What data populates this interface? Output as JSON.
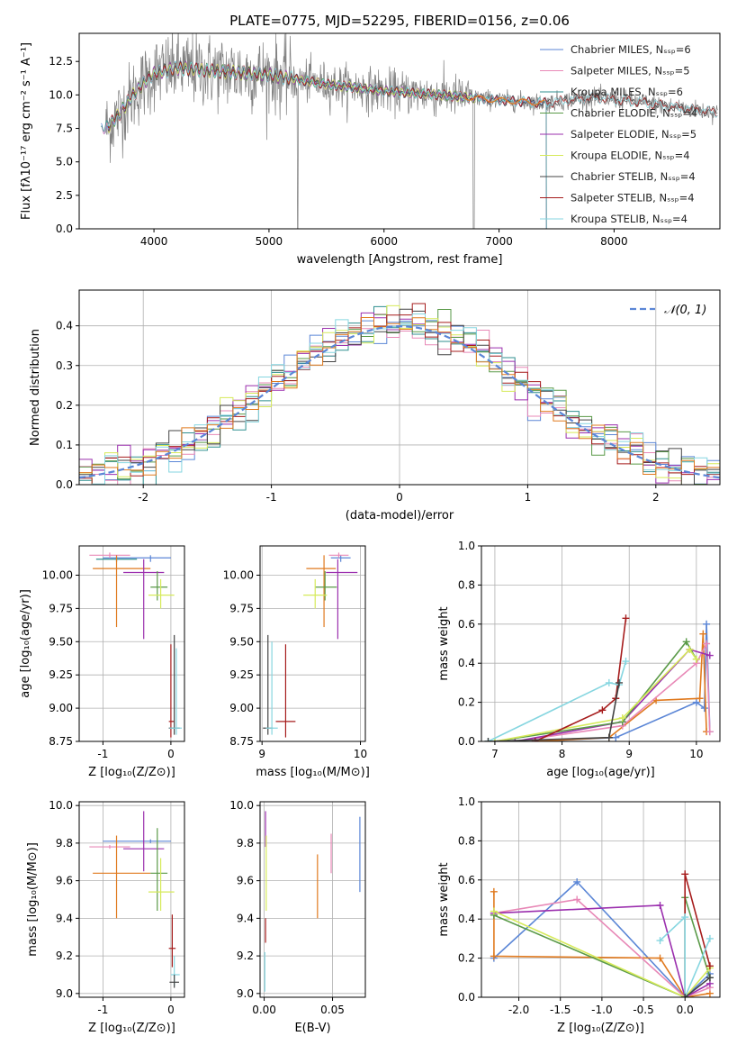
{
  "figure": {
    "title": "PLATE=0775, MJD=52295, FIBERID=0156, z=0.06"
  },
  "colors": {
    "data": "#808080",
    "Chabrier MILES": "#5b86d6",
    "Salpeter MILES": "#e889b7",
    "Kroupa MILES": "#2f8f8f",
    "Chabrier ELODIE": "#5a9a48",
    "Salpeter ELODIE": "#9b2fae",
    "Kroupa ELODIE": "#d6ea5a",
    "Chabrier STELIB": "#444444",
    "Salpeter STELIB": "#a61c1c",
    "Kroupa STELIB": "#86d6e0",
    "orange": "#e07a1f",
    "normal": "#5b86d6"
  },
  "chart_data": [
    {
      "id": "spectrum",
      "type": "line",
      "xlabel": "wavelength [Angstrom, rest frame]",
      "ylabel": "Flux [fλ10⁻¹⁷ erg cm⁻² s⁻¹ A⁻¹]",
      "xlim": [
        3350,
        8920
      ],
      "ylim": [
        0,
        14.6
      ],
      "xticks": [
        4000,
        5000,
        6000,
        7000,
        8000
      ],
      "yticks": [
        0.0,
        2.5,
        5.0,
        7.5,
        10.0,
        12.5
      ],
      "legend_position": "top-right",
      "legend": [
        "Chabrier MILES, Nₛₛₚ=6",
        "Salpeter MILES, Nₛₛₚ=5",
        "Kroupa MILES, Nₛₛₚ=6",
        "Chabrier ELODIE, Nₛₛₚ=4",
        "Salpeter ELODIE, Nₛₛₚ=5",
        "Kroupa ELODIE, Nₛₛₚ=4",
        "Chabrier STELIB, Nₛₛₚ=4",
        "Salpeter STELIB, Nₛₛₚ=4",
        "Kroupa STELIB, Nₛₛₚ=4"
      ],
      "continuum": [
        [
          3600,
          7.6
        ],
        [
          3700,
          8.6
        ],
        [
          3800,
          9.8
        ],
        [
          3900,
          10.8
        ],
        [
          4000,
          11.6
        ],
        [
          4200,
          12.0
        ],
        [
          4500,
          11.8
        ],
        [
          5000,
          11.5
        ],
        [
          5500,
          10.8
        ],
        [
          6000,
          10.3
        ],
        [
          6500,
          10.0
        ],
        [
          7000,
          9.6
        ],
        [
          7400,
          9.4
        ],
        [
          7800,
          9.8
        ],
        [
          8200,
          9.5
        ],
        [
          8600,
          9.0
        ],
        [
          8900,
          8.7
        ]
      ]
    },
    {
      "id": "residuals",
      "type": "line",
      "xlabel": "(data-model)/error",
      "ylabel": "Normed distribution",
      "xlim": [
        -2.5,
        2.5
      ],
      "ylim": [
        0,
        0.49
      ],
      "xticks": [
        -2,
        -1,
        0,
        1,
        2
      ],
      "yticks": [
        0.0,
        0.1,
        0.2,
        0.3,
        0.4
      ],
      "legend_position": "top-right",
      "legend": [
        "𝒩(0, 1)"
      ],
      "bin_width": 0.1
    },
    {
      "id": "age-vs-Z",
      "type": "scatter",
      "xlabel": "Z [log₁₀(Z/Z⊙)]",
      "ylabel": "age  [log₁₀(age/yr)]",
      "xlim": [
        -1.35,
        0.2
      ],
      "ylim": [
        8.75,
        10.22
      ],
      "xticks": [
        -1,
        0
      ],
      "yticks": [
        8.75,
        9.0,
        9.25,
        9.5,
        9.75,
        10.0
      ],
      "points": [
        {
          "series": "Chabrier MILES",
          "x": -0.3,
          "xerr": [
            0.7,
            0.3
          ],
          "y": 10.13,
          "yerr": [
            0.03,
            0.02
          ]
        },
        {
          "series": "Salpeter MILES",
          "x": -0.9,
          "xerr": [
            0.3,
            0.3
          ],
          "y": 10.15,
          "yerr": [
            0.02,
            0.02
          ]
        },
        {
          "series": "Kroupa MILES",
          "x": -0.8,
          "xerr": [
            0.3,
            0.3
          ],
          "y": 10.12,
          "yerr": [
            0.02,
            0.02
          ]
        },
        {
          "series": "orange",
          "x": -0.8,
          "xerr": [
            0.35,
            0.5
          ],
          "y": 10.05,
          "yerr": [
            0.44,
            0.1
          ]
        },
        {
          "series": "Salpeter ELODIE",
          "x": -0.4,
          "xerr": [
            0.3,
            0.3
          ],
          "y": 10.02,
          "yerr": [
            0.5,
            0.1
          ]
        },
        {
          "series": "Chabrier ELODIE",
          "x": -0.2,
          "xerr": [
            0.1,
            0.15
          ],
          "y": 9.91,
          "yerr": [
            0.1,
            0.12
          ]
        },
        {
          "series": "Kroupa ELODIE",
          "x": -0.15,
          "xerr": [
            0.18,
            0.2
          ],
          "y": 9.85,
          "yerr": [
            0.1,
            0.12
          ]
        },
        {
          "series": "Salpeter STELIB",
          "x": 0.0,
          "xerr": [
            0.03,
            0.05
          ],
          "y": 8.9,
          "yerr": [
            0.12,
            0.58
          ]
        },
        {
          "series": "Chabrier STELIB",
          "x": 0.05,
          "xerr": [
            0.08,
            0.08
          ],
          "y": 8.85,
          "yerr": [
            0.05,
            0.7
          ]
        },
        {
          "series": "Kroupa STELIB",
          "x": 0.08,
          "xerr": [
            0.1,
            0.08
          ],
          "y": 8.85,
          "yerr": [
            0.05,
            0.6
          ]
        }
      ]
    },
    {
      "id": "age-vs-mass",
      "type": "scatter",
      "xlabel": "mass [log₁₀(M/M⊙)]",
      "ylabel": "",
      "xlim": [
        8.98,
        10.05
      ],
      "ylim": [
        8.75,
        10.22
      ],
      "xticks": [
        9,
        10
      ],
      "yticks": [
        8.75,
        9.0,
        9.25,
        9.5,
        9.75,
        10.0
      ],
      "points": [
        {
          "series": "Chabrier MILES",
          "x": 9.8,
          "xerr": [
            0.1,
            0.1
          ],
          "y": 10.13,
          "yerr": [
            0.03,
            0.02
          ]
        },
        {
          "series": "Salpeter MILES",
          "x": 9.78,
          "xerr": [
            0.1,
            0.1
          ],
          "y": 10.15,
          "yerr": [
            0.02,
            0.02
          ]
        },
        {
          "series": "orange",
          "x": 9.63,
          "xerr": [
            0.18,
            0.12
          ],
          "y": 10.05,
          "yerr": [
            0.44,
            0.1
          ]
        },
        {
          "series": "Salpeter ELODIE",
          "x": 9.77,
          "xerr": [
            0.12,
            0.2
          ],
          "y": 10.02,
          "yerr": [
            0.5,
            0.1
          ]
        },
        {
          "series": "Chabrier ELODIE",
          "x": 9.64,
          "xerr": [
            0.1,
            0.12
          ],
          "y": 9.91,
          "yerr": [
            0.1,
            0.12
          ]
        },
        {
          "series": "Kroupa ELODIE",
          "x": 9.54,
          "xerr": [
            0.12,
            0.12
          ],
          "y": 9.85,
          "yerr": [
            0.1,
            0.12
          ]
        },
        {
          "series": "Salpeter STELIB",
          "x": 9.24,
          "xerr": [
            0.1,
            0.1
          ],
          "y": 8.9,
          "yerr": [
            0.12,
            0.58
          ]
        },
        {
          "series": "Chabrier STELIB",
          "x": 9.06,
          "xerr": [
            0.05,
            0.05
          ],
          "y": 8.85,
          "yerr": [
            0.05,
            0.7
          ]
        },
        {
          "series": "Kroupa STELIB",
          "x": 9.1,
          "xerr": [
            0.06,
            0.06
          ],
          "y": 8.85,
          "yerr": [
            0.05,
            0.65
          ]
        }
      ]
    },
    {
      "id": "weight-vs-age",
      "type": "line",
      "xlabel": "age  [log₁₀(age/yr)]",
      "ylabel": "mass weight",
      "xlim": [
        6.8,
        10.35
      ],
      "ylim": [
        0,
        1
      ],
      "xticks": [
        7,
        8,
        9,
        10
      ],
      "yticks": [
        0.0,
        0.2,
        0.4,
        0.6,
        0.8,
        1.0
      ],
      "series": [
        {
          "name": "Chabrier MILES",
          "x": [
            7.6,
            8.8,
            10.0,
            10.12,
            10.15,
            10.2
          ],
          "y": [
            0.0,
            0.02,
            0.2,
            0.17,
            0.6,
            0.05
          ]
        },
        {
          "name": "orange",
          "x": [
            7.6,
            8.7,
            9.4,
            10.05,
            10.1,
            10.15
          ],
          "y": [
            0.0,
            0.02,
            0.21,
            0.22,
            0.55,
            0.05
          ]
        },
        {
          "name": "Salpeter MILES",
          "x": [
            7.3,
            8.9,
            10.0,
            10.15,
            10.2
          ],
          "y": [
            0.0,
            0.08,
            0.4,
            0.5,
            0.05
          ]
        },
        {
          "name": "Salpeter ELODIE",
          "x": [
            7.3,
            8.9,
            9.9,
            10.2
          ],
          "y": [
            0.0,
            0.1,
            0.47,
            0.44
          ]
        },
        {
          "name": "Chabrier ELODIE",
          "x": [
            7.0,
            8.9,
            9.85,
            10.0
          ],
          "y": [
            0.0,
            0.1,
            0.51,
            0.42
          ]
        },
        {
          "name": "Kroupa ELODIE",
          "x": [
            7.0,
            8.9,
            9.9,
            10.0
          ],
          "y": [
            0.0,
            0.12,
            0.47,
            0.42
          ]
        },
        {
          "name": "Salpeter STELIB",
          "x": [
            7.6,
            8.6,
            8.8,
            8.95
          ],
          "y": [
            0.0,
            0.16,
            0.22,
            0.63
          ]
        },
        {
          "name": "Kroupa STELIB",
          "x": [
            6.9,
            8.7,
            8.85,
            8.95
          ],
          "y": [
            0.0,
            0.3,
            0.29,
            0.41
          ]
        },
        {
          "name": "Chabrier STELIB",
          "x": [
            6.9,
            8.7,
            8.85
          ],
          "y": [
            0.0,
            0.02,
            0.3
          ]
        }
      ]
    },
    {
      "id": "mass-vs-Z",
      "type": "scatter",
      "xlabel": "Z [log₁₀(Z/Z⊙)]",
      "ylabel": "mass [log₁₀(M/M⊙)]",
      "xlim": [
        -1.35,
        0.2
      ],
      "ylim": [
        8.98,
        10.02
      ],
      "xticks": [
        -1,
        0
      ],
      "yticks": [
        9.0,
        9.2,
        9.4,
        9.6,
        9.8,
        10.0
      ],
      "points": [
        {
          "series": "Chabrier MILES",
          "x": -0.3,
          "xerr": [
            0.7,
            0.3
          ],
          "y": 9.81,
          "yerr": [
            0.01,
            0.01
          ]
        },
        {
          "series": "Salpeter MILES",
          "x": -0.9,
          "xerr": [
            0.3,
            0.3
          ],
          "y": 9.78,
          "yerr": [
            0.01,
            0.01
          ]
        },
        {
          "series": "orange",
          "x": -0.8,
          "xerr": [
            0.35,
            0.5
          ],
          "y": 9.64,
          "yerr": [
            0.24,
            0.2
          ]
        },
        {
          "series": "Salpeter ELODIE",
          "x": -0.4,
          "xerr": [
            0.3,
            0.3
          ],
          "y": 9.77,
          "yerr": [
            0.12,
            0.2
          ]
        },
        {
          "series": "Chabrier ELODIE",
          "x": -0.2,
          "xerr": [
            0.1,
            0.15
          ],
          "y": 9.64,
          "yerr": [
            0.2,
            0.24
          ]
        },
        {
          "series": "Kroupa ELODIE",
          "x": -0.15,
          "xerr": [
            0.18,
            0.2
          ],
          "y": 9.54,
          "yerr": [
            0.1,
            0.18
          ]
        },
        {
          "series": "Salpeter STELIB",
          "x": 0.02,
          "xerr": [
            0.05,
            0.05
          ],
          "y": 9.24,
          "yerr": [
            0.1,
            0.18
          ]
        },
        {
          "series": "Kroupa STELIB",
          "x": 0.05,
          "xerr": [
            0.05,
            0.08
          ],
          "y": 9.1,
          "yerr": [
            0.06,
            0.1
          ]
        },
        {
          "series": "Chabrier STELIB",
          "x": 0.05,
          "xerr": [
            0.07,
            0.07
          ],
          "y": 9.06,
          "yerr": [
            0.03,
            0.04
          ]
        }
      ]
    },
    {
      "id": "mass-vs-ebv",
      "type": "scatter",
      "xlabel": "E(B-V)",
      "ylabel": "",
      "xlim": [
        -0.003,
        0.074
      ],
      "ylim": [
        8.98,
        10.02
      ],
      "xticks": [
        0.0,
        0.05
      ],
      "yticks": [
        9.0,
        9.2,
        9.4,
        9.6,
        9.8,
        10.0
      ],
      "points": [
        {
          "series": "Chabrier MILES",
          "x": 0.07,
          "y": 9.74,
          "yerr": [
            0.2,
            0.2
          ]
        },
        {
          "series": "Salpeter MILES",
          "x": 0.049,
          "y": 9.74,
          "yerr": [
            0.1,
            0.11
          ]
        },
        {
          "series": "orange",
          "x": 0.039,
          "y": 9.57,
          "yerr": [
            0.17,
            0.17
          ]
        },
        {
          "series": "Salpeter ELODIE",
          "x": 0.001,
          "y": 9.89,
          "yerr": [
            0.11,
            0.08
          ]
        },
        {
          "series": "Kroupa ELODIE",
          "x": 0.0015,
          "y": 9.64,
          "yerr": [
            0.2,
            0.2
          ]
        },
        {
          "series": "Salpeter STELIB",
          "x": 0.001,
          "y": 9.33,
          "yerr": [
            0.06,
            0.07
          ]
        },
        {
          "series": "Kroupa STELIB",
          "x": 0.0005,
          "y": 9.1,
          "yerr": [
            0.09,
            0.12
          ]
        }
      ]
    },
    {
      "id": "weight-vs-Z",
      "type": "line",
      "xlabel": "Z [log₁₀(Z/Z⊙)]",
      "ylabel": "mass weight",
      "xlim": [
        -2.45,
        0.42
      ],
      "ylim": [
        0,
        1
      ],
      "xticks": [
        -2.0,
        -1.5,
        -1.0,
        -0.5,
        0.0
      ],
      "yticks": [
        0.0,
        0.2,
        0.4,
        0.6,
        0.8,
        1.0
      ],
      "series": [
        {
          "name": "Chabrier MILES",
          "x": [
            -2.3,
            -1.3,
            0.0,
            0.3
          ],
          "y": [
            0.2,
            0.59,
            0.0,
            0.12
          ]
        },
        {
          "name": "orange",
          "x": [
            -2.3,
            -2.3,
            -0.3,
            0.0,
            0.3
          ],
          "y": [
            0.54,
            0.21,
            0.2,
            0.0,
            0.02
          ]
        },
        {
          "name": "Salpeter MILES",
          "x": [
            -2.3,
            -1.3,
            0.0,
            0.3
          ],
          "y": [
            0.43,
            0.5,
            0.0,
            0.05
          ]
        },
        {
          "name": "Salpeter ELODIE",
          "x": [
            -2.3,
            -0.3,
            0.0,
            0.3
          ],
          "y": [
            0.43,
            0.47,
            0.0,
            0.07
          ]
        },
        {
          "name": "Chabrier ELODIE",
          "x": [
            -2.3,
            0.0,
            0.0,
            0.3
          ],
          "y": [
            0.42,
            0.0,
            0.51,
            0.1
          ]
        },
        {
          "name": "Kroupa ELODIE",
          "x": [
            -2.3,
            0.0,
            0.3
          ],
          "y": [
            0.44,
            0.0,
            0.15
          ]
        },
        {
          "name": "Salpeter STELIB",
          "x": [
            0.0,
            0.0,
            0.3
          ],
          "y": [
            0.0,
            0.63,
            0.16
          ]
        },
        {
          "name": "Kroupa STELIB",
          "x": [
            -0.3,
            0.0,
            0.0,
            0.3
          ],
          "y": [
            0.29,
            0.41,
            0.0,
            0.3
          ]
        },
        {
          "name": "Chabrier STELIB",
          "x": [
            0.0,
            0.3
          ],
          "y": [
            0.0,
            0.1
          ]
        }
      ]
    }
  ]
}
